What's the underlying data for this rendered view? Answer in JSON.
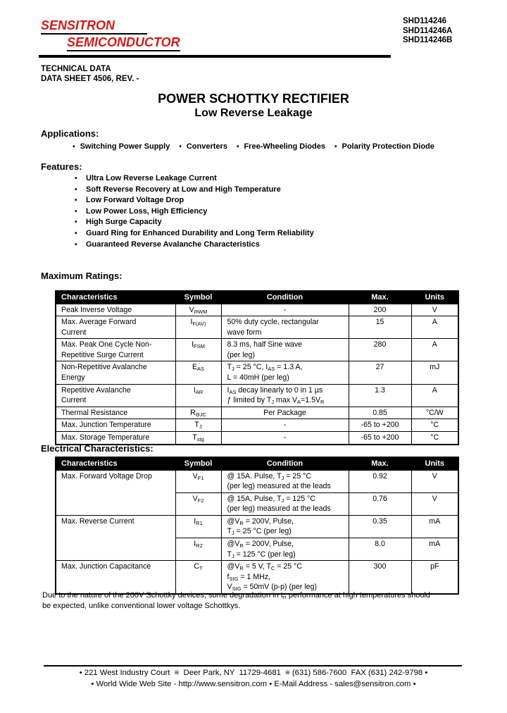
{
  "page": {
    "background": "#ffffff",
    "brand_color": "#d31a1a"
  },
  "header": {
    "company_line1": "SENSITRON",
    "company_line2": "SEMICONDUCTOR",
    "part_numbers": [
      "SHD114246",
      "SHD114246A",
      "SHD114246B"
    ],
    "doc_type": "TECHNICAL DATA",
    "doc_sheet": "DATA SHEET 4506, REV. -"
  },
  "title": {
    "line1": "POWER SCHOTTKY RECTIFIER",
    "line2": "Low Reverse Leakage"
  },
  "applications": {
    "heading": "Applications:",
    "items": [
      "Switching Power Supply",
      "Converters",
      "Free-Wheeling Diodes",
      "Polarity Protection Diode"
    ]
  },
  "features": {
    "heading": "Features:",
    "items": [
      "Ultra Low Reverse Leakage Current",
      "Soft Reverse Recovery at Low and High Temperature",
      "Low Forward Voltage Drop",
      "Low Power Loss, High Efficiency",
      "High Surge Capacity",
      "Guard Ring for Enhanced Durability and Long Term Reliability",
      "Guaranteed Reverse Avalanche Characteristics"
    ]
  },
  "tables": [
    {
      "id": "maximum-ratings",
      "heading": "Maximum Ratings:",
      "columns": [
        "Characteristics",
        "Symbol",
        "Condition",
        "Max.",
        "Units"
      ],
      "rows": [
        {
          "characteristic": "Peak Inverse Voltage",
          "symbol": "V~RWM~",
          "condition": "-",
          "condition_align": "center",
          "max": "200",
          "units": "V"
        },
        {
          "characteristic": "Max. Average Forward\nCurrent",
          "symbol": "I~F(AV)~",
          "condition": "50% duty cycle, rectangular\nwave form",
          "max": "15",
          "units": "A"
        },
        {
          "characteristic": "Max. Peak One Cycle Non-\nRepetitive Surge Current",
          "symbol": "I~FSM~",
          "condition": "8.3 ms, half Sine wave\n(per leg)",
          "max": "280",
          "units": "A"
        },
        {
          "characteristic": "Non-Repetitive Avalanche\nEnergy",
          "symbol": "E~AS~",
          "condition": "T~J~ = 25 °C, I~AS~ = 1.3 A,\nL = 40mH (per leg)",
          "max": "27",
          "units": "mJ"
        },
        {
          "characteristic": "Repetitive Avalanche\nCurrent",
          "symbol": "I~AR~",
          "condition": "I~AS~ decay linearly to 0 in 1 µs\nƒ limited by T~J~ max V~A~=1.5V~R~",
          "max": "1.3",
          "units": "A"
        },
        {
          "characteristic": "Thermal Resistance",
          "symbol": "R~ΘJC~",
          "condition": "Per Package",
          "condition_align": "center",
          "max": "0.85",
          "units": "°C/W"
        },
        {
          "characteristic": "Max. Junction Temperature",
          "symbol": "T~J~",
          "condition": "-",
          "condition_align": "center",
          "max": "-65 to +200",
          "units": "°C"
        },
        {
          "characteristic": "Max. Storage Temperature",
          "symbol": "T~stg~",
          "condition": "-",
          "condition_align": "center",
          "max": "-65 to +200",
          "units": "°C"
        }
      ]
    },
    {
      "id": "electrical-characteristics",
      "heading": "Electrical Characteristics:",
      "columns": [
        "Characteristics",
        "Symbol",
        "Condition",
        "Max.",
        "Units"
      ],
      "rows": [
        {
          "characteristic": "Max. Forward Voltage Drop",
          "rowspan": 2,
          "symbol": "V~F1~",
          "condition": "@ 15A. Pulse, T~J~ = 25 °C\n(per leg) measured at the leads",
          "max": "0.92",
          "units": "V"
        },
        {
          "characteristic": null,
          "symbol": "V~F2~",
          "condition": "@ 15A, Pulse, T~J~ = 125 °C\n(per leg) measured at the leads",
          "max": "0.76",
          "units": "V"
        },
        {
          "characteristic": "Max. Reverse Current",
          "rowspan": 2,
          "symbol": "I~R1~",
          "condition": "@V~R~ = 200V, Pulse,\nT~J~ = 25 °C (per leg)",
          "max": "0.35",
          "units": "mA"
        },
        {
          "characteristic": null,
          "symbol": "I~R2~",
          "condition": "@V~R~ = 200V, Pulse,\nT~J~ = 125 °C (per leg)",
          "max": "8.0",
          "units": "mA"
        },
        {
          "characteristic": "Max. Junction Capacitance",
          "symbol": "C~T~",
          "condition": "@V~R~ = 5 V, T~C~ = 25 °C\nf~SIG~ = 1 MHz,\nV~SIG~ = 50mV (p-p) (per leg)",
          "max": "300",
          "units": "pF"
        }
      ]
    }
  ],
  "footnote": "Due to the nature of the 200V Schottky devices, some degradation in t~rr~ performance at high temperatures should\nbe expected, unlike conventional lower voltage Schottkys.",
  "footer": {
    "line1": "• 221 West Industry Court  ≡  Deer Park, NY  11729-4681  ≡ (631) 586-7600  FAX (631) 242-9798 •",
    "line2": "• World Wide Web Site - http://www.sensitron.com • E-Mail Address - sales@sensitron.com •"
  }
}
